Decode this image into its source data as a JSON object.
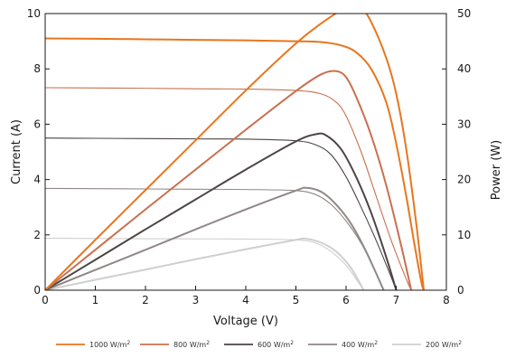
{
  "chart_data": {
    "type": "line",
    "xlabel": "Voltage (V)",
    "ylabel": "Current (A)",
    "y2label": "Power (W)",
    "xlim": [
      0,
      8
    ],
    "ylim": [
      0,
      10
    ],
    "y2lim": [
      0,
      50
    ],
    "xticks": [
      "0",
      "1",
      "2",
      "3",
      "4",
      "5",
      "6",
      "7",
      "8"
    ],
    "yticks": [
      "0",
      "2",
      "4",
      "6",
      "8",
      "10"
    ],
    "y2ticks": [
      "0",
      "10",
      "20",
      "30",
      "40",
      "50"
    ],
    "grid": false,
    "legend_position": "bottom",
    "series": [
      {
        "name": "1000 W/m",
        "color": "#e8761e",
        "iv": [
          [
            0,
            9.1
          ],
          [
            1,
            9.09
          ],
          [
            2,
            9.07
          ],
          [
            3,
            9.05
          ],
          [
            4,
            9.03
          ],
          [
            5,
            9.0
          ],
          [
            5.5,
            8.97
          ],
          [
            5.9,
            8.85
          ],
          [
            6.2,
            8.6
          ],
          [
            6.5,
            8.0
          ],
          [
            6.8,
            6.8
          ],
          [
            7.0,
            5.3
          ],
          [
            7.2,
            3.4
          ],
          [
            7.35,
            1.8
          ],
          [
            7.5,
            0.3
          ],
          [
            7.55,
            0
          ]
        ],
        "pv": [
          [
            0,
            0
          ],
          [
            1,
            9.1
          ],
          [
            2,
            18.1
          ],
          [
            3,
            27.1
          ],
          [
            4,
            36.1
          ],
          [
            5,
            44.6
          ],
          [
            5.5,
            48.2
          ],
          [
            5.9,
            50.6
          ],
          [
            6.1,
            51.5
          ],
          [
            6.3,
            51.0
          ],
          [
            6.5,
            48.5
          ],
          [
            6.8,
            42.0
          ],
          [
            7.0,
            35.5
          ],
          [
            7.2,
            25.5
          ],
          [
            7.4,
            12.0
          ],
          [
            7.55,
            0
          ]
        ]
      },
      {
        "name": "800 W/m",
        "color": "#c8704f",
        "iv": [
          [
            0,
            7.32
          ],
          [
            1,
            7.31
          ],
          [
            2,
            7.3
          ],
          [
            3,
            7.28
          ],
          [
            4,
            7.27
          ],
          [
            5,
            7.22
          ],
          [
            5.5,
            7.1
          ],
          [
            5.8,
            6.8
          ],
          [
            6.0,
            6.3
          ],
          [
            6.3,
            5.0
          ],
          [
            6.6,
            3.4
          ],
          [
            6.9,
            1.8
          ],
          [
            7.2,
            0.4
          ],
          [
            7.3,
            0
          ]
        ],
        "pv": [
          [
            0,
            0
          ],
          [
            1,
            7.3
          ],
          [
            2,
            14.6
          ],
          [
            3,
            21.8
          ],
          [
            4,
            29.0
          ],
          [
            5,
            36.0
          ],
          [
            5.5,
            39.0
          ],
          [
            5.8,
            39.6
          ],
          [
            6.0,
            38.5
          ],
          [
            6.2,
            35.0
          ],
          [
            6.5,
            28.0
          ],
          [
            6.8,
            19.0
          ],
          [
            7.1,
            8.0
          ],
          [
            7.3,
            0
          ]
        ]
      },
      {
        "name": "600 W/m",
        "color": "#4b4544",
        "iv": [
          [
            0,
            5.5
          ],
          [
            1,
            5.49
          ],
          [
            2,
            5.48
          ],
          [
            3,
            5.47
          ],
          [
            4,
            5.46
          ],
          [
            5,
            5.4
          ],
          [
            5.4,
            5.25
          ],
          [
            5.7,
            4.9
          ],
          [
            6.0,
            4.1
          ],
          [
            6.3,
            3.0
          ],
          [
            6.6,
            1.8
          ],
          [
            6.85,
            0.7
          ],
          [
            7.0,
            0
          ]
        ],
        "pv": [
          [
            0,
            0
          ],
          [
            1,
            5.5
          ],
          [
            2,
            11.0
          ],
          [
            3,
            16.4
          ],
          [
            4,
            21.8
          ],
          [
            5,
            26.9
          ],
          [
            5.4,
            28.2
          ],
          [
            5.6,
            28.0
          ],
          [
            5.9,
            25.5
          ],
          [
            6.2,
            20.5
          ],
          [
            6.5,
            14.0
          ],
          [
            6.8,
            6.0
          ],
          [
            7.0,
            0
          ]
        ]
      },
      {
        "name": "400 W/m",
        "color": "#8f8887",
        "iv": [
          [
            0,
            3.68
          ],
          [
            1,
            3.67
          ],
          [
            2,
            3.66
          ],
          [
            3,
            3.65
          ],
          [
            4,
            3.64
          ],
          [
            5,
            3.6
          ],
          [
            5.4,
            3.45
          ],
          [
            5.7,
            3.1
          ],
          [
            6.0,
            2.5
          ],
          [
            6.3,
            1.7
          ],
          [
            6.55,
            0.8
          ],
          [
            6.75,
            0
          ]
        ],
        "pv": [
          [
            0,
            0
          ],
          [
            1,
            3.67
          ],
          [
            2,
            7.3
          ],
          [
            3,
            11.0
          ],
          [
            4,
            14.6
          ],
          [
            5,
            18.0
          ],
          [
            5.2,
            18.5
          ],
          [
            5.5,
            17.8
          ],
          [
            5.8,
            15.5
          ],
          [
            6.1,
            12.0
          ],
          [
            6.4,
            7.0
          ],
          [
            6.75,
            0
          ]
        ]
      },
      {
        "name": "200 W/m",
        "color": "#cfcfcf",
        "iv": [
          [
            0,
            1.88
          ],
          [
            1,
            1.87
          ],
          [
            2,
            1.86
          ],
          [
            3,
            1.855
          ],
          [
            4,
            1.85
          ],
          [
            5,
            1.82
          ],
          [
            5.4,
            1.7
          ],
          [
            5.7,
            1.4
          ],
          [
            6.0,
            0.9
          ],
          [
            6.2,
            0.4
          ],
          [
            6.35,
            0
          ]
        ],
        "pv": [
          [
            0,
            0
          ],
          [
            1,
            1.88
          ],
          [
            2,
            3.72
          ],
          [
            3,
            5.6
          ],
          [
            4,
            7.4
          ],
          [
            5,
            9.1
          ],
          [
            5.2,
            9.3
          ],
          [
            5.5,
            8.6
          ],
          [
            5.8,
            7.0
          ],
          [
            6.1,
            4.0
          ],
          [
            6.35,
            0
          ]
        ]
      }
    ],
    "legend_sup": "2"
  }
}
